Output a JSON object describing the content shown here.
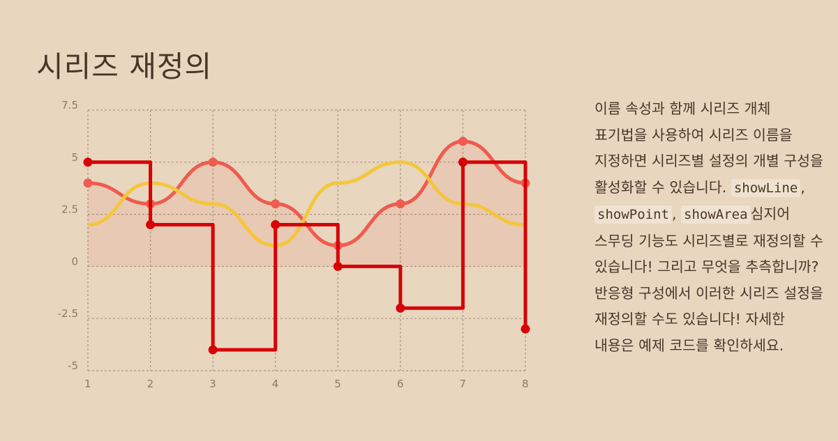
{
  "page": {
    "title": "시리즈 재정의",
    "description": {
      "part1": "이름 속성과 함께 시리즈 개체 표기법을 사용하여 시리즈 이름을 지정하면 시리즈별 설정의 개별 구성을 활성화할 수 있습니다. ",
      "code1": "showLine",
      "sep1": ", ",
      "code2": "showPoint",
      "sep2": ", ",
      "code3": "showArea",
      "part2": "심지어 스무딩 기능도 시리즈별로 재정의할 수 있습니다! 그리고 무엇을 추측합니까? 반응형 구성에서 이러한 시리즈 설정을 재정의할 수도 있습니다! 자세한 내용은 예제 코드를 확인하세요."
    }
  },
  "chart_data": {
    "type": "line",
    "x": [
      1,
      2,
      3,
      4,
      5,
      6,
      7,
      8
    ],
    "ylim": [
      -5,
      7.5
    ],
    "yticks": [
      -5,
      -2.5,
      0,
      2.5,
      5,
      7.5
    ],
    "ytick_labels": [
      "-5",
      "-2.5",
      "0",
      "2.5",
      "5",
      "7.5"
    ],
    "xtick_labels": [
      "1",
      "2",
      "3",
      "4",
      "5",
      "6",
      "7",
      "8"
    ],
    "grid": true,
    "series": [
      {
        "values": [
          5,
          2,
          -4,
          2,
          0,
          -2,
          5,
          -3
        ],
        "color": "#d70206",
        "style": "step",
        "points": true,
        "area": false
      },
      {
        "values": [
          4,
          3,
          5,
          3,
          1,
          3,
          6,
          4
        ],
        "color": "#f05b4f",
        "style": "smooth",
        "points": true,
        "area": true
      },
      {
        "values": [
          2,
          4,
          3,
          1,
          4,
          5,
          3,
          2
        ],
        "color": "#f4c63d",
        "style": "smooth",
        "points": false,
        "area": false
      }
    ]
  }
}
